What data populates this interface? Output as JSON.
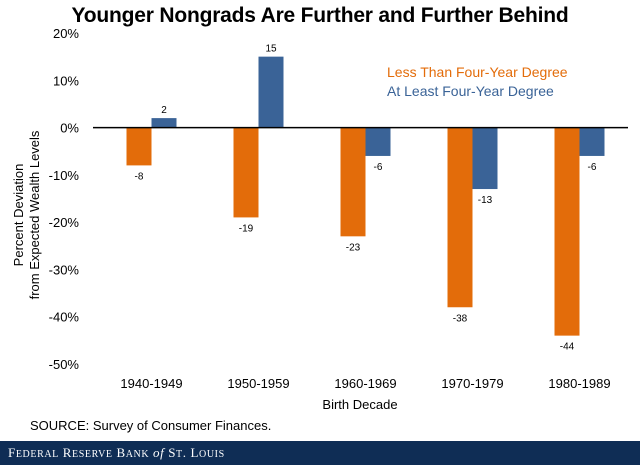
{
  "chart_data": {
    "type": "bar",
    "title": "Younger Nongrads Are Further and Further Behind",
    "xlabel": "Birth Decade",
    "ylabel_line1": "Percent Deviation",
    "ylabel_line2": "from Expected Wealth Levels",
    "categories": [
      "1940-1949",
      "1950-1959",
      "1960-1969",
      "1970-1979",
      "1980-1989"
    ],
    "series": [
      {
        "name": "Less Than Four-Year Degree",
        "color": "#e36c0a",
        "values": [
          -8,
          -19,
          -23,
          -38,
          -44
        ],
        "value_labels": [
          "-8",
          "-19",
          "-23",
          "-38",
          "-44"
        ]
      },
      {
        "name": "At Least Four-Year Degree",
        "color": "#3a6397",
        "values": [
          2,
          15,
          -6,
          -13,
          -6
        ],
        "value_labels": [
          "2",
          "15",
          "-6",
          "-13",
          "-6"
        ]
      }
    ],
    "ylim": [
      -50,
      20
    ],
    "yticks": [
      20,
      10,
      0,
      -10,
      -20,
      -30,
      -40,
      -50
    ],
    "ytick_labels": [
      "20%",
      "10%",
      "0%",
      "-10%",
      "-20%",
      "-30%",
      "-40%",
      "-50%"
    ],
    "legend_position": "top-right",
    "grid": false
  },
  "source": "SOURCE: Survey of Consumer Finances.",
  "footer": {
    "part1": "F",
    "part2": "EDERAL",
    "part3": " R",
    "part4": "ESERVE",
    "part5": " B",
    "part6": "ANK",
    "part7": " of ",
    "part8": "S",
    "part9": "T",
    "part10": ". L",
    "part11": "OUIS",
    "bg_color": "#0f2d55"
  }
}
